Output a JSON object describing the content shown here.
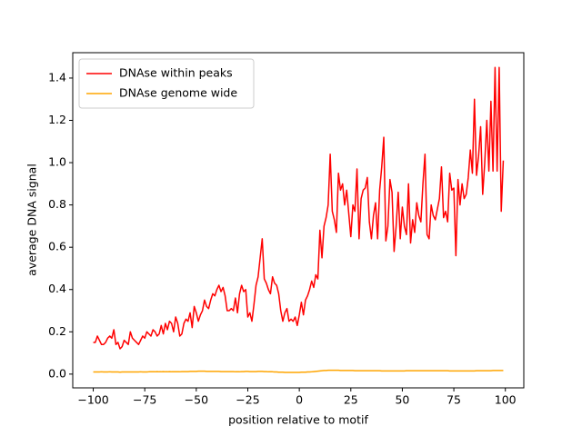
{
  "chart_data": {
    "type": "line",
    "xlabel": "position relative to motif",
    "ylabel": "average DNA signal",
    "x": [
      -100,
      -99,
      -98,
      -97,
      -96,
      -95,
      -94,
      -93,
      -92,
      -91,
      -90,
      -89,
      -88,
      -87,
      -86,
      -85,
      -84,
      -83,
      -82,
      -81,
      -80,
      -79,
      -78,
      -77,
      -76,
      -75,
      -74,
      -73,
      -72,
      -71,
      -70,
      -69,
      -68,
      -67,
      -66,
      -65,
      -64,
      -63,
      -62,
      -61,
      -60,
      -59,
      -58,
      -57,
      -56,
      -55,
      -54,
      -53,
      -52,
      -51,
      -50,
      -49,
      -48,
      -47,
      -46,
      -45,
      -44,
      -43,
      -42,
      -41,
      -40,
      -39,
      -38,
      -37,
      -36,
      -35,
      -34,
      -33,
      -32,
      -31,
      -30,
      -29,
      -28,
      -27,
      -26,
      -25,
      -24,
      -23,
      -22,
      -21,
      -20,
      -19,
      -18,
      -17,
      -16,
      -15,
      -14,
      -13,
      -12,
      -11,
      -10,
      -9,
      -8,
      -7,
      -6,
      -5,
      -4,
      -3,
      -2,
      -1,
      0,
      1,
      2,
      3,
      4,
      5,
      6,
      7,
      8,
      9,
      10,
      11,
      12,
      13,
      14,
      15,
      16,
      17,
      18,
      19,
      20,
      21,
      22,
      23,
      24,
      25,
      26,
      27,
      28,
      29,
      30,
      31,
      32,
      33,
      34,
      35,
      36,
      37,
      38,
      39,
      40,
      41,
      42,
      43,
      44,
      45,
      46,
      47,
      48,
      49,
      50,
      51,
      52,
      53,
      54,
      55,
      56,
      57,
      58,
      59,
      60,
      61,
      62,
      63,
      64,
      65,
      66,
      67,
      68,
      69,
      70,
      71,
      72,
      73,
      74,
      75,
      76,
      77,
      78,
      79,
      80,
      81,
      82,
      83,
      84,
      85,
      86,
      87,
      88,
      89,
      90,
      91,
      92,
      93,
      94,
      95,
      96,
      97,
      98,
      99
    ],
    "series": [
      {
        "name": "DNAse within peaks",
        "color": "#ff0000",
        "values": [
          0.15,
          0.15,
          0.18,
          0.16,
          0.14,
          0.14,
          0.15,
          0.17,
          0.18,
          0.17,
          0.21,
          0.14,
          0.15,
          0.12,
          0.13,
          0.16,
          0.15,
          0.14,
          0.2,
          0.17,
          0.16,
          0.15,
          0.14,
          0.16,
          0.18,
          0.17,
          0.2,
          0.19,
          0.18,
          0.21,
          0.2,
          0.18,
          0.19,
          0.23,
          0.19,
          0.24,
          0.21,
          0.25,
          0.24,
          0.2,
          0.27,
          0.24,
          0.18,
          0.19,
          0.24,
          0.26,
          0.25,
          0.29,
          0.22,
          0.32,
          0.29,
          0.25,
          0.28,
          0.3,
          0.35,
          0.32,
          0.31,
          0.35,
          0.38,
          0.37,
          0.4,
          0.42,
          0.39,
          0.41,
          0.37,
          0.3,
          0.3,
          0.31,
          0.3,
          0.36,
          0.29,
          0.38,
          0.42,
          0.39,
          0.4,
          0.27,
          0.29,
          0.25,
          0.33,
          0.42,
          0.46,
          0.55,
          0.64,
          0.45,
          0.43,
          0.4,
          0.38,
          0.46,
          0.43,
          0.42,
          0.38,
          0.3,
          0.25,
          0.29,
          0.31,
          0.25,
          0.26,
          0.25,
          0.27,
          0.23,
          0.28,
          0.34,
          0.28,
          0.35,
          0.37,
          0.4,
          0.44,
          0.41,
          0.47,
          0.45,
          0.68,
          0.55,
          0.7,
          0.74,
          0.8,
          1.04,
          0.77,
          0.73,
          0.67,
          0.95,
          0.87,
          0.9,
          0.8,
          0.87,
          0.76,
          0.65,
          0.8,
          0.77,
          0.97,
          0.64,
          0.83,
          0.87,
          0.88,
          0.93,
          0.72,
          0.64,
          0.75,
          0.81,
          0.64,
          0.87,
          0.98,
          1.12,
          0.63,
          0.7,
          0.92,
          0.86,
          0.58,
          0.7,
          0.86,
          0.64,
          0.79,
          0.7,
          0.66,
          0.9,
          0.62,
          0.73,
          0.67,
          0.81,
          0.75,
          0.72,
          0.9,
          1.04,
          0.66,
          0.64,
          0.8,
          0.75,
          0.73,
          0.78,
          0.83,
          0.98,
          0.74,
          0.77,
          0.72,
          0.95,
          0.87,
          0.88,
          0.56,
          0.92,
          0.8,
          0.9,
          0.83,
          0.85,
          0.93,
          1.06,
          0.95,
          1.3,
          0.94,
          1.03,
          1.17,
          0.85,
          1.0,
          1.2,
          0.96,
          1.29,
          0.96,
          1.45,
          0.96,
          1.45,
          0.77,
          1.01
        ]
      },
      {
        "name": "DNAse genome wide",
        "color": "#ffa500",
        "values": [
          0.01,
          0.01,
          0.01,
          0.01,
          0.011,
          0.01,
          0.01,
          0.01,
          0.011,
          0.01,
          0.01,
          0.01,
          0.01,
          0.009,
          0.01,
          0.01,
          0.01,
          0.01,
          0.01,
          0.01,
          0.01,
          0.01,
          0.01,
          0.011,
          0.01,
          0.01,
          0.01,
          0.011,
          0.011,
          0.011,
          0.011,
          0.012,
          0.011,
          0.011,
          0.012,
          0.011,
          0.011,
          0.012,
          0.011,
          0.011,
          0.011,
          0.011,
          0.011,
          0.012,
          0.012,
          0.012,
          0.012,
          0.013,
          0.013,
          0.013,
          0.013,
          0.014,
          0.014,
          0.014,
          0.014,
          0.013,
          0.013,
          0.013,
          0.013,
          0.013,
          0.013,
          0.013,
          0.012,
          0.012,
          0.012,
          0.012,
          0.012,
          0.012,
          0.012,
          0.011,
          0.011,
          0.011,
          0.012,
          0.012,
          0.013,
          0.013,
          0.012,
          0.012,
          0.012,
          0.012,
          0.013,
          0.013,
          0.013,
          0.012,
          0.012,
          0.011,
          0.011,
          0.011,
          0.01,
          0.01,
          0.009,
          0.009,
          0.009,
          0.008,
          0.008,
          0.008,
          0.008,
          0.008,
          0.008,
          0.008,
          0.008,
          0.009,
          0.009,
          0.009,
          0.01,
          0.01,
          0.011,
          0.012,
          0.013,
          0.014,
          0.015,
          0.016,
          0.017,
          0.017,
          0.018,
          0.018,
          0.018,
          0.018,
          0.018,
          0.018,
          0.017,
          0.017,
          0.017,
          0.017,
          0.017,
          0.017,
          0.017,
          0.016,
          0.016,
          0.016,
          0.016,
          0.016,
          0.016,
          0.016,
          0.016,
          0.016,
          0.016,
          0.016,
          0.016,
          0.016,
          0.015,
          0.015,
          0.015,
          0.015,
          0.015,
          0.015,
          0.015,
          0.015,
          0.015,
          0.015,
          0.015,
          0.015,
          0.016,
          0.016,
          0.016,
          0.016,
          0.016,
          0.016,
          0.016,
          0.016,
          0.016,
          0.016,
          0.016,
          0.016,
          0.016,
          0.016,
          0.016,
          0.016,
          0.016,
          0.016,
          0.016,
          0.016,
          0.016,
          0.015,
          0.015,
          0.015,
          0.015,
          0.015,
          0.015,
          0.015,
          0.015,
          0.015,
          0.015,
          0.015,
          0.015,
          0.015,
          0.016,
          0.016,
          0.016,
          0.016,
          0.016,
          0.016,
          0.016,
          0.016,
          0.017,
          0.017,
          0.017,
          0.017,
          0.017,
          0.017
        ]
      }
    ],
    "xlim": [
      -109.95,
      108.95
    ],
    "ylim": [
      -0.065,
      1.52
    ],
    "xticks": [
      {
        "value": -100,
        "label": "−100"
      },
      {
        "value": -75,
        "label": "−75"
      },
      {
        "value": -50,
        "label": "−50"
      },
      {
        "value": -25,
        "label": "−25"
      },
      0,
      25,
      50,
      75,
      100
    ],
    "yticks": [
      {
        "value": 0,
        "label": "0.0"
      },
      0.2,
      0.4,
      0.6,
      0.8,
      {
        "value": 1,
        "label": "1.0"
      },
      1.2,
      1.4
    ],
    "legend": "upper left",
    "grid": false
  }
}
